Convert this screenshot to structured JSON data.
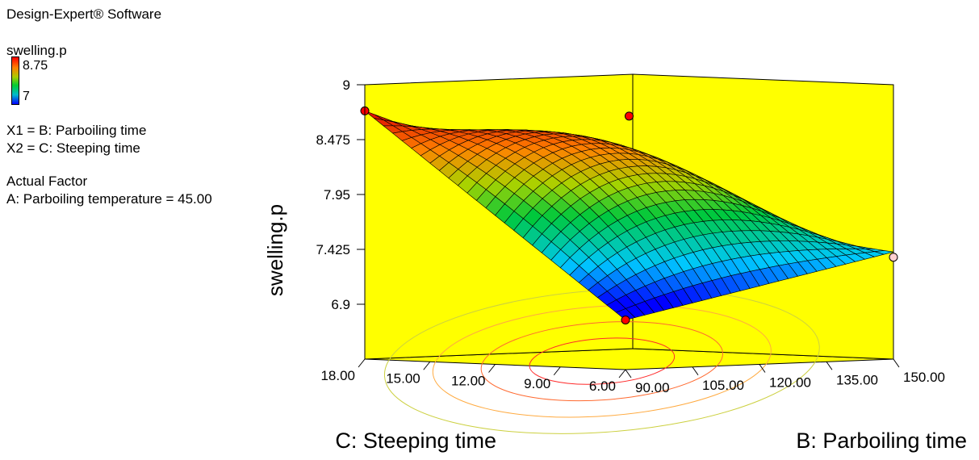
{
  "header": {
    "software": "Design-Expert® Software",
    "response_name": "swelling.p",
    "legend_high": "8.75",
    "legend_low": "7",
    "x1_line": "X1 = B: Parboiling time",
    "x2_line": "X2 = C: Steeping time",
    "actual_factor_heading": "Actual Factor",
    "actual_factor_line": "A: Parboiling temperature = 45.00"
  },
  "colors": {
    "background": "#ffff00",
    "legend_high": "#ff0000",
    "legend_low": "#0000ff",
    "design_point": "#ff0000"
  },
  "chart_data": {
    "type": "surface",
    "title": "",
    "zlabel": "swelling.p",
    "xlabel": "B: Parboiling time",
    "ylabel": "C: Steeping time",
    "x_ticks": [
      "90.00",
      "105.00",
      "120.00",
      "135.00",
      "150.00"
    ],
    "y_ticks": [
      "6.00",
      "9.00",
      "12.00",
      "15.00",
      "18.00"
    ],
    "z_ticks": [
      "6.9",
      "7.425",
      "7.95",
      "8.475",
      "9"
    ],
    "xlim": [
      90,
      150
    ],
    "ylim": [
      6,
      18
    ],
    "zlim": [
      6.375,
      9
    ],
    "color_range": [
      7,
      8.75
    ],
    "surface_corners": [
      {
        "x": 90,
        "y": 6,
        "z": 6.85
      },
      {
        "x": 150,
        "y": 6,
        "z": 7.4
      },
      {
        "x": 90,
        "y": 18,
        "z": 8.75
      },
      {
        "x": 150,
        "y": 18,
        "z": 7.7
      }
    ],
    "design_points": [
      {
        "x": 90,
        "y": 18,
        "z": 8.75
      },
      {
        "x": 90,
        "y": 6,
        "z": 6.85
      },
      {
        "x": 150,
        "y": 6,
        "z": 7.35
      },
      {
        "x": 120,
        "y": 12,
        "z": 8.7
      }
    ]
  }
}
